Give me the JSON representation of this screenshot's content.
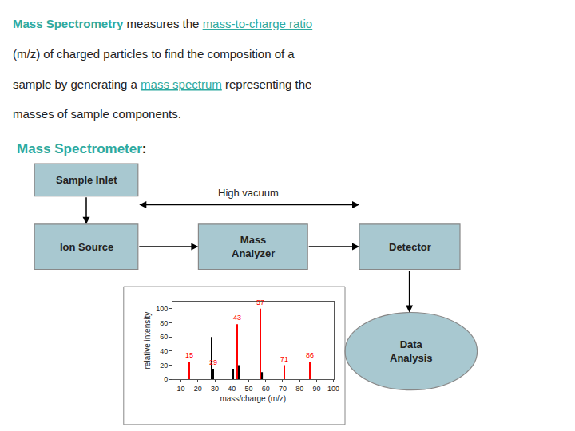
{
  "chart_data": {
    "type": "bar",
    "background": "#ffffff",
    "text_color": "#222222",
    "text_lines": [
      [
        {
          "text": "Mass Spectrometry",
          "color": "#2EAAA0",
          "bold": true
        },
        {
          "text": " measures the "
        },
        {
          "text": "mass-to-charge ratio",
          "color": "#2EAAA0",
          "underline": true
        }
      ],
      [
        {
          "text": "(m/z) of charged particles to find the composition of a"
        }
      ],
      [
        {
          "text": "sample by generating a "
        },
        {
          "text": "mass spectrum",
          "color": "#2EAAA0",
          "underline": true
        },
        {
          "text": " representing the"
        }
      ],
      [
        {
          "text": "masses of sample components."
        }
      ]
    ],
    "heading": [
      {
        "text": "Mass Spectrometer",
        "color": "#2EAAA0",
        "bold": true
      },
      {
        "text": ":",
        "bold": true
      }
    ],
    "diagram": {
      "boxes": [
        "Sample Inlet",
        "Ion Source",
        "Mass\nAnalyzer",
        "Detector"
      ],
      "ellipse": "Data\nAnalysis",
      "arrow_label": "High vacuum",
      "fill": "#A8C8D0",
      "edge": "#888888",
      "arrow_color": "black"
    },
    "x": [
      15,
      28,
      29,
      41,
      43,
      44,
      57,
      58,
      71,
      86
    ],
    "values": [
      25,
      60,
      15,
      15,
      78,
      20,
      100,
      10,
      20,
      25
    ],
    "colors": [
      "red",
      "black",
      "black",
      "black",
      "red",
      "black",
      "red",
      "black",
      "red",
      "red"
    ],
    "xlabel": "mass/charge (m/z)",
    "ylabel": "relative intensity",
    "xlim": [
      5,
      100
    ],
    "xticks": [
      10,
      20,
      30,
      40,
      50,
      60,
      70,
      80,
      90,
      100
    ],
    "ylim": [
      0,
      110
    ],
    "yticks": [
      0,
      20,
      40,
      60,
      80,
      100
    ],
    "grid": false,
    "annotations": [
      {
        "text": "15",
        "x": 15,
        "y": 25,
        "color": "red"
      },
      {
        "text": "29",
        "x": 29,
        "y": 15,
        "color": "red"
      },
      {
        "text": "43",
        "x": 43,
        "y": 78,
        "color": "red"
      },
      {
        "text": "57",
        "x": 57,
        "y": 100,
        "color": "red"
      },
      {
        "text": "71",
        "x": 71,
        "y": 20,
        "color": "red"
      },
      {
        "text": "86",
        "x": 86,
        "y": 25,
        "color": "red"
      }
    ]
  }
}
